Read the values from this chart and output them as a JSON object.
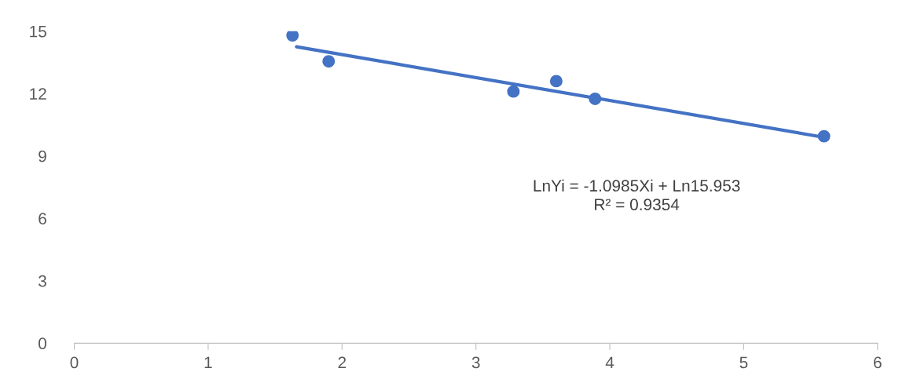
{
  "chart_data": {
    "type": "scatter",
    "xlim": [
      0,
      6
    ],
    "ylim": [
      0,
      15
    ],
    "xticks": [
      0,
      1,
      2,
      3,
      4,
      5,
      6
    ],
    "yticks": [
      0,
      3,
      6,
      9,
      12,
      15
    ],
    "grid": false,
    "legend": false,
    "series": [
      {
        "color": "#4472c4",
        "marker": "circle",
        "x": [
          1.63,
          1.9,
          3.28,
          3.6,
          3.89,
          5.6
        ],
        "values": [
          14.8,
          13.55,
          12.1,
          12.6,
          11.75,
          9.95
        ]
      },
      {
        "type": "line",
        "marker": "none",
        "color": "#4472c4",
        "x": [
          1.66,
          5.6
        ],
        "values": [
          14.25,
          9.9
        ]
      }
    ],
    "annotations": [
      "LnYi = -1.0985Xi + Ln15.953\nR² = 0.9354"
    ]
  }
}
